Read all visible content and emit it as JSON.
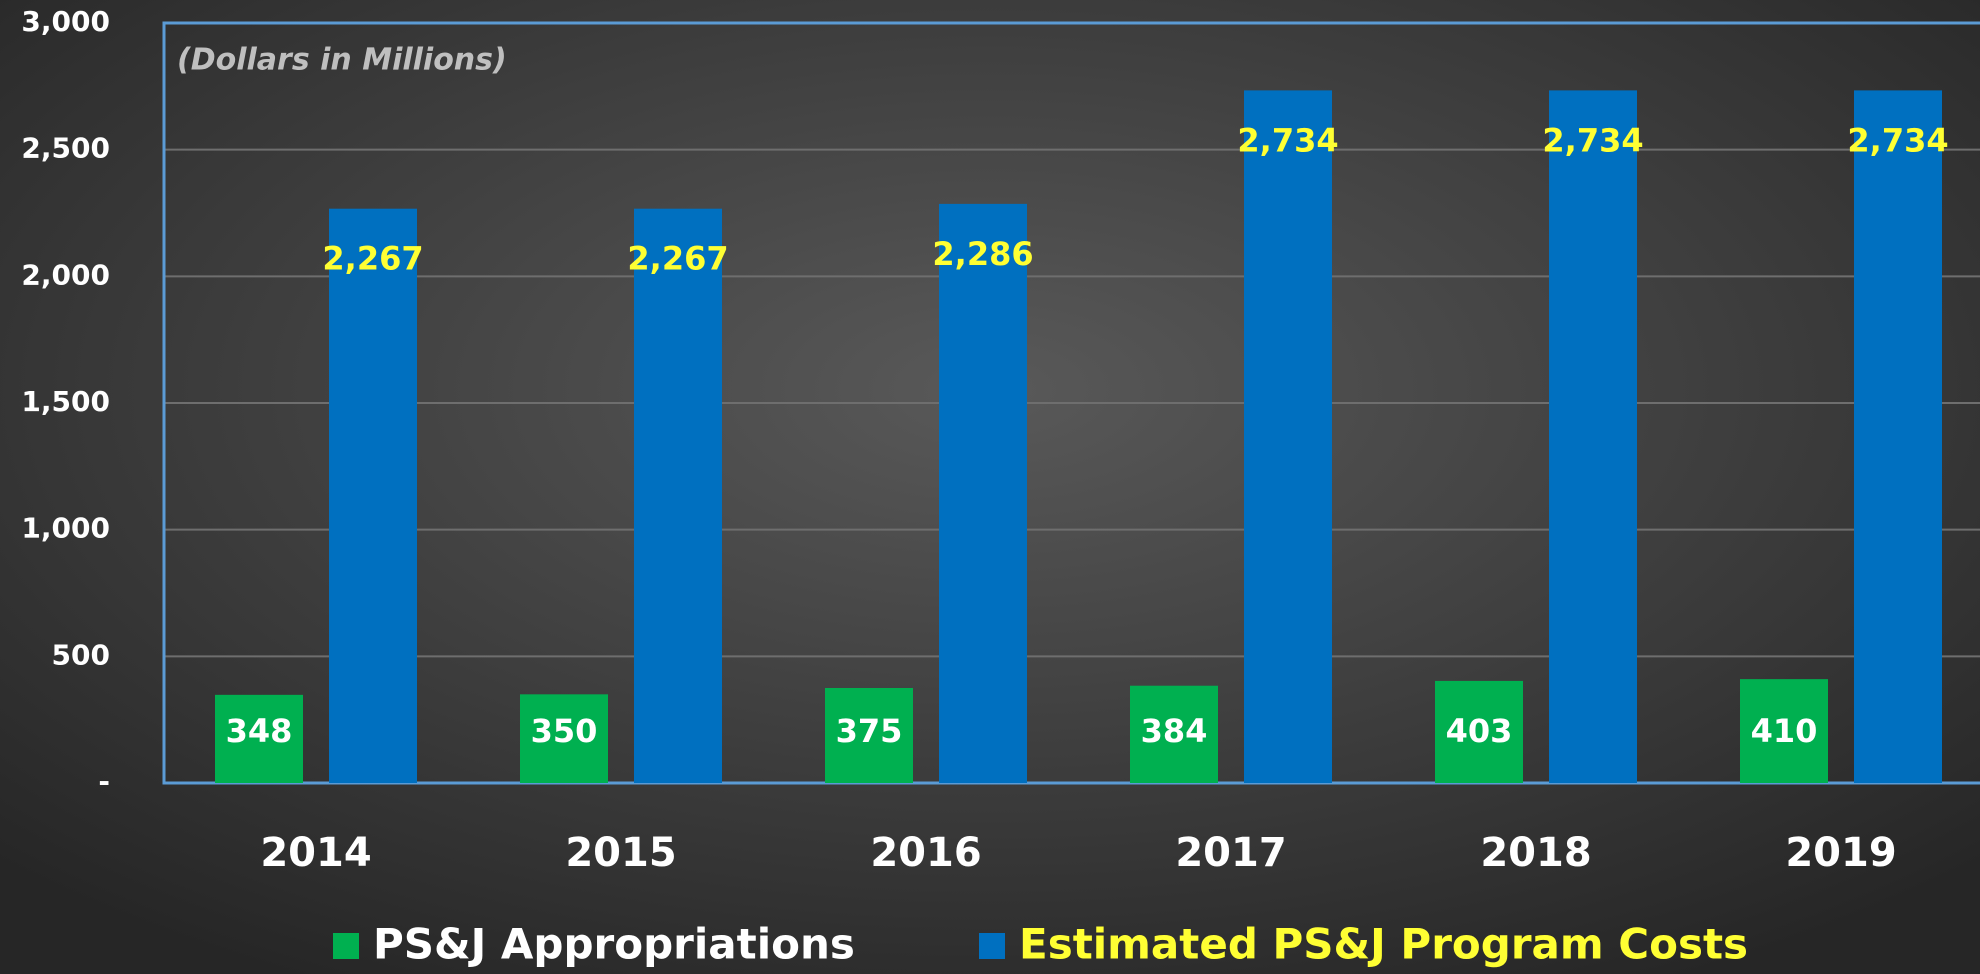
{
  "chart_data": {
    "type": "bar",
    "subtitle": "(Dollars in Millions)",
    "categories": [
      "2014",
      "2015",
      "2016",
      "2017",
      "2018",
      "2019"
    ],
    "series": [
      {
        "name": "PS&J Appropriations",
        "color": "#00b050",
        "label_color": "#ffffff",
        "values": [
          348,
          350,
          375,
          384,
          403,
          410
        ]
      },
      {
        "name": "Estimated PS&J Program Costs",
        "color": "#0070c0",
        "label_color": "#ffff33",
        "values": [
          2267,
          2267,
          2286,
          2734,
          2734,
          2734
        ],
        "value_labels": [
          "2,267",
          "2,267",
          "2,286",
          "2,734",
          "2,734",
          "2,734"
        ]
      }
    ],
    "ylim": [
      0,
      3000
    ],
    "yticks": [
      {
        "value": 0,
        "label": "-"
      },
      500,
      {
        "value": 1000,
        "label": "1,000"
      },
      {
        "value": 1500,
        "label": "1,500"
      },
      {
        "value": 2000,
        "label": "2,000"
      },
      {
        "value": 2500,
        "label": "2,500"
      },
      {
        "value": 3000,
        "label": "3,000"
      }
    ],
    "grid": true
  }
}
